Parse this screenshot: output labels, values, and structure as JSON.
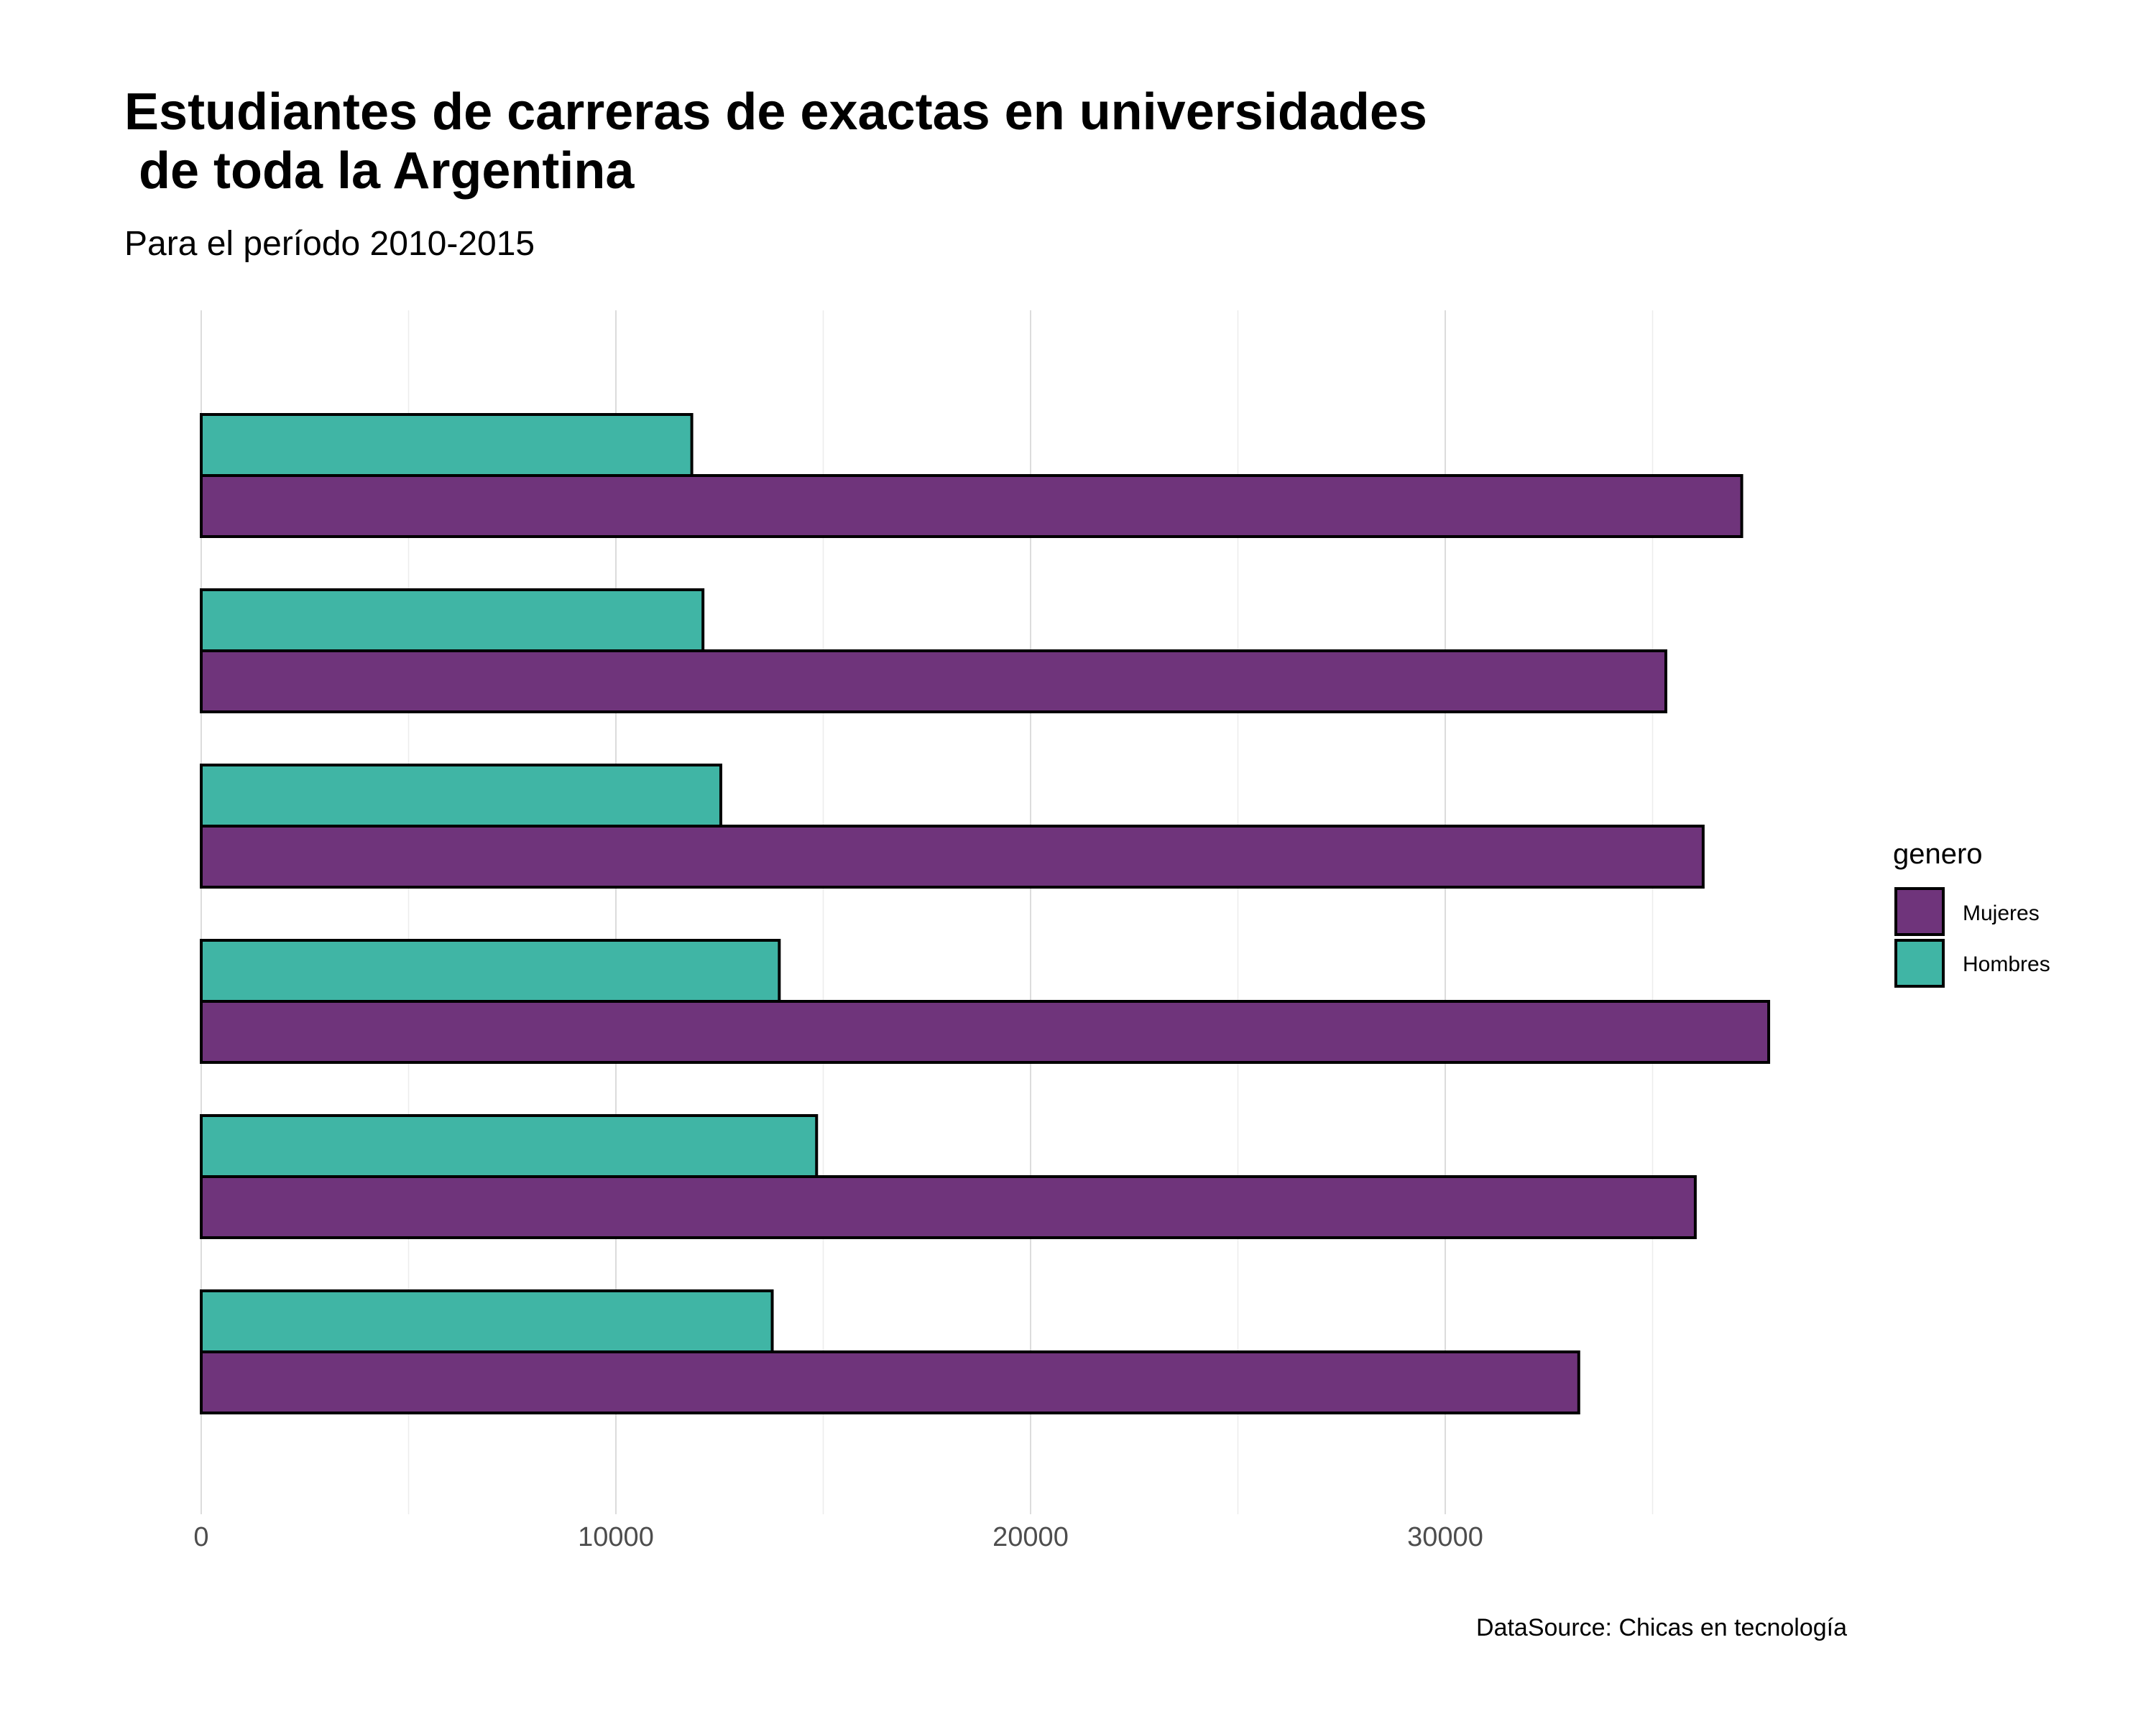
{
  "chart_data": {
    "type": "bar",
    "orientation": "horizontal",
    "title_line1": "Estudiantes de carreras de exactas en universidades",
    "title_line2": " de toda la Argentina",
    "subtitle": "Para el período 2010-2015",
    "caption": "DataSource: Chicas en tecnología",
    "xlabel": "",
    "ylabel": "",
    "xlim": [
      0,
      38000
    ],
    "x_ticks": [
      0,
      10000,
      20000,
      30000
    ],
    "x_tick_labels": [
      "0",
      "10000",
      "20000",
      "30000"
    ],
    "grid": true,
    "legend": {
      "title": "genero",
      "position": "right"
    },
    "categories": [
      "",
      "",
      "",
      "",
      "",
      ""
    ],
    "series": [
      {
        "name": "Mujeres",
        "color": "#6f347b",
        "values": [
          37150,
          35320,
          36220,
          37800,
          36030,
          33220
        ]
      },
      {
        "name": "Hombres",
        "color": "#40b5a5",
        "values": [
          11830,
          12100,
          12530,
          13940,
          14840,
          13770
        ]
      }
    ]
  }
}
